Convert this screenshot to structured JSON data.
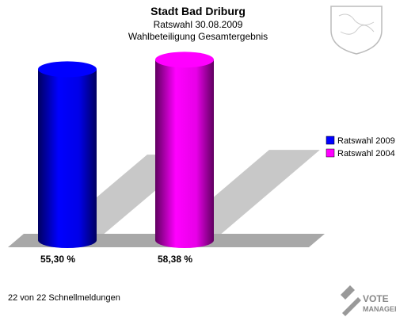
{
  "chart_data": {
    "type": "cylinder-bar",
    "title": "Stadt Bad Driburg",
    "subtitles": [
      "Ratswahl 30.08.2009",
      "Wahlbeteiligung Gesamtergebnis"
    ],
    "series": [
      {
        "name": "Ratswahl 2009",
        "color": "#0000ff",
        "values": [
          55.3
        ],
        "value_labels": [
          "55,30 %"
        ]
      },
      {
        "name": "Ratswahl 2004",
        "color": "#ff00ff",
        "values": [
          58.38
        ],
        "value_labels": [
          "58,38 %"
        ]
      }
    ],
    "footnote": "22 von 22 Schnellmeldungen",
    "logo": [
      "VOTE",
      "MANAGER"
    ]
  }
}
